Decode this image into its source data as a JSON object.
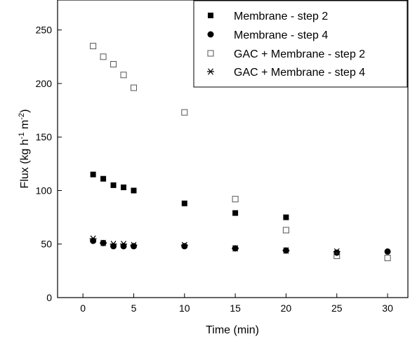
{
  "chart_data": {
    "type": "scatter",
    "title": "",
    "xlabel": "Time (min)",
    "ylabel": "Flux (kg h",
    "ylabel_sup1": "-1",
    "ylabel_mid": " m",
    "ylabel_sup2": "-2",
    "ylabel_end": ")",
    "xlim": [
      -2.5,
      32
    ],
    "ylim": [
      0,
      278
    ],
    "xticks": [
      0,
      5,
      10,
      15,
      20,
      25,
      30
    ],
    "yticks": [
      0,
      50,
      100,
      150,
      200,
      250
    ],
    "grid": false,
    "legend_position": "top-right",
    "series": [
      {
        "name": "Membrane - step 2",
        "marker": "filled-square",
        "color": "#000000",
        "x": [
          1,
          2,
          3,
          4,
          5,
          10,
          15,
          20
        ],
        "y": [
          115,
          111,
          105,
          103,
          100,
          88,
          79,
          75
        ]
      },
      {
        "name": "Membrane - step 4",
        "marker": "filled-circle",
        "color": "#000000",
        "x": [
          1,
          2,
          3,
          4,
          5,
          10,
          15,
          20,
          25,
          30
        ],
        "y": [
          53,
          51,
          48,
          48,
          48,
          48,
          46,
          44,
          42,
          43
        ]
      },
      {
        "name": "GAC + Membrane - step 2",
        "marker": "open-square",
        "color": "#555555",
        "x": [
          1,
          2,
          3,
          4,
          5,
          10,
          15,
          20,
          25,
          30
        ],
        "y": [
          235,
          225,
          218,
          208,
          196,
          173,
          92,
          63,
          39,
          37
        ]
      },
      {
        "name": "GAC + Membrane - step 4",
        "marker": "asterisk",
        "color": "#000000",
        "x": [
          1,
          2,
          3,
          4,
          5,
          10,
          15,
          20,
          25
        ],
        "y": [
          55,
          51,
          50,
          50,
          49,
          49,
          46,
          44,
          43
        ]
      }
    ]
  }
}
